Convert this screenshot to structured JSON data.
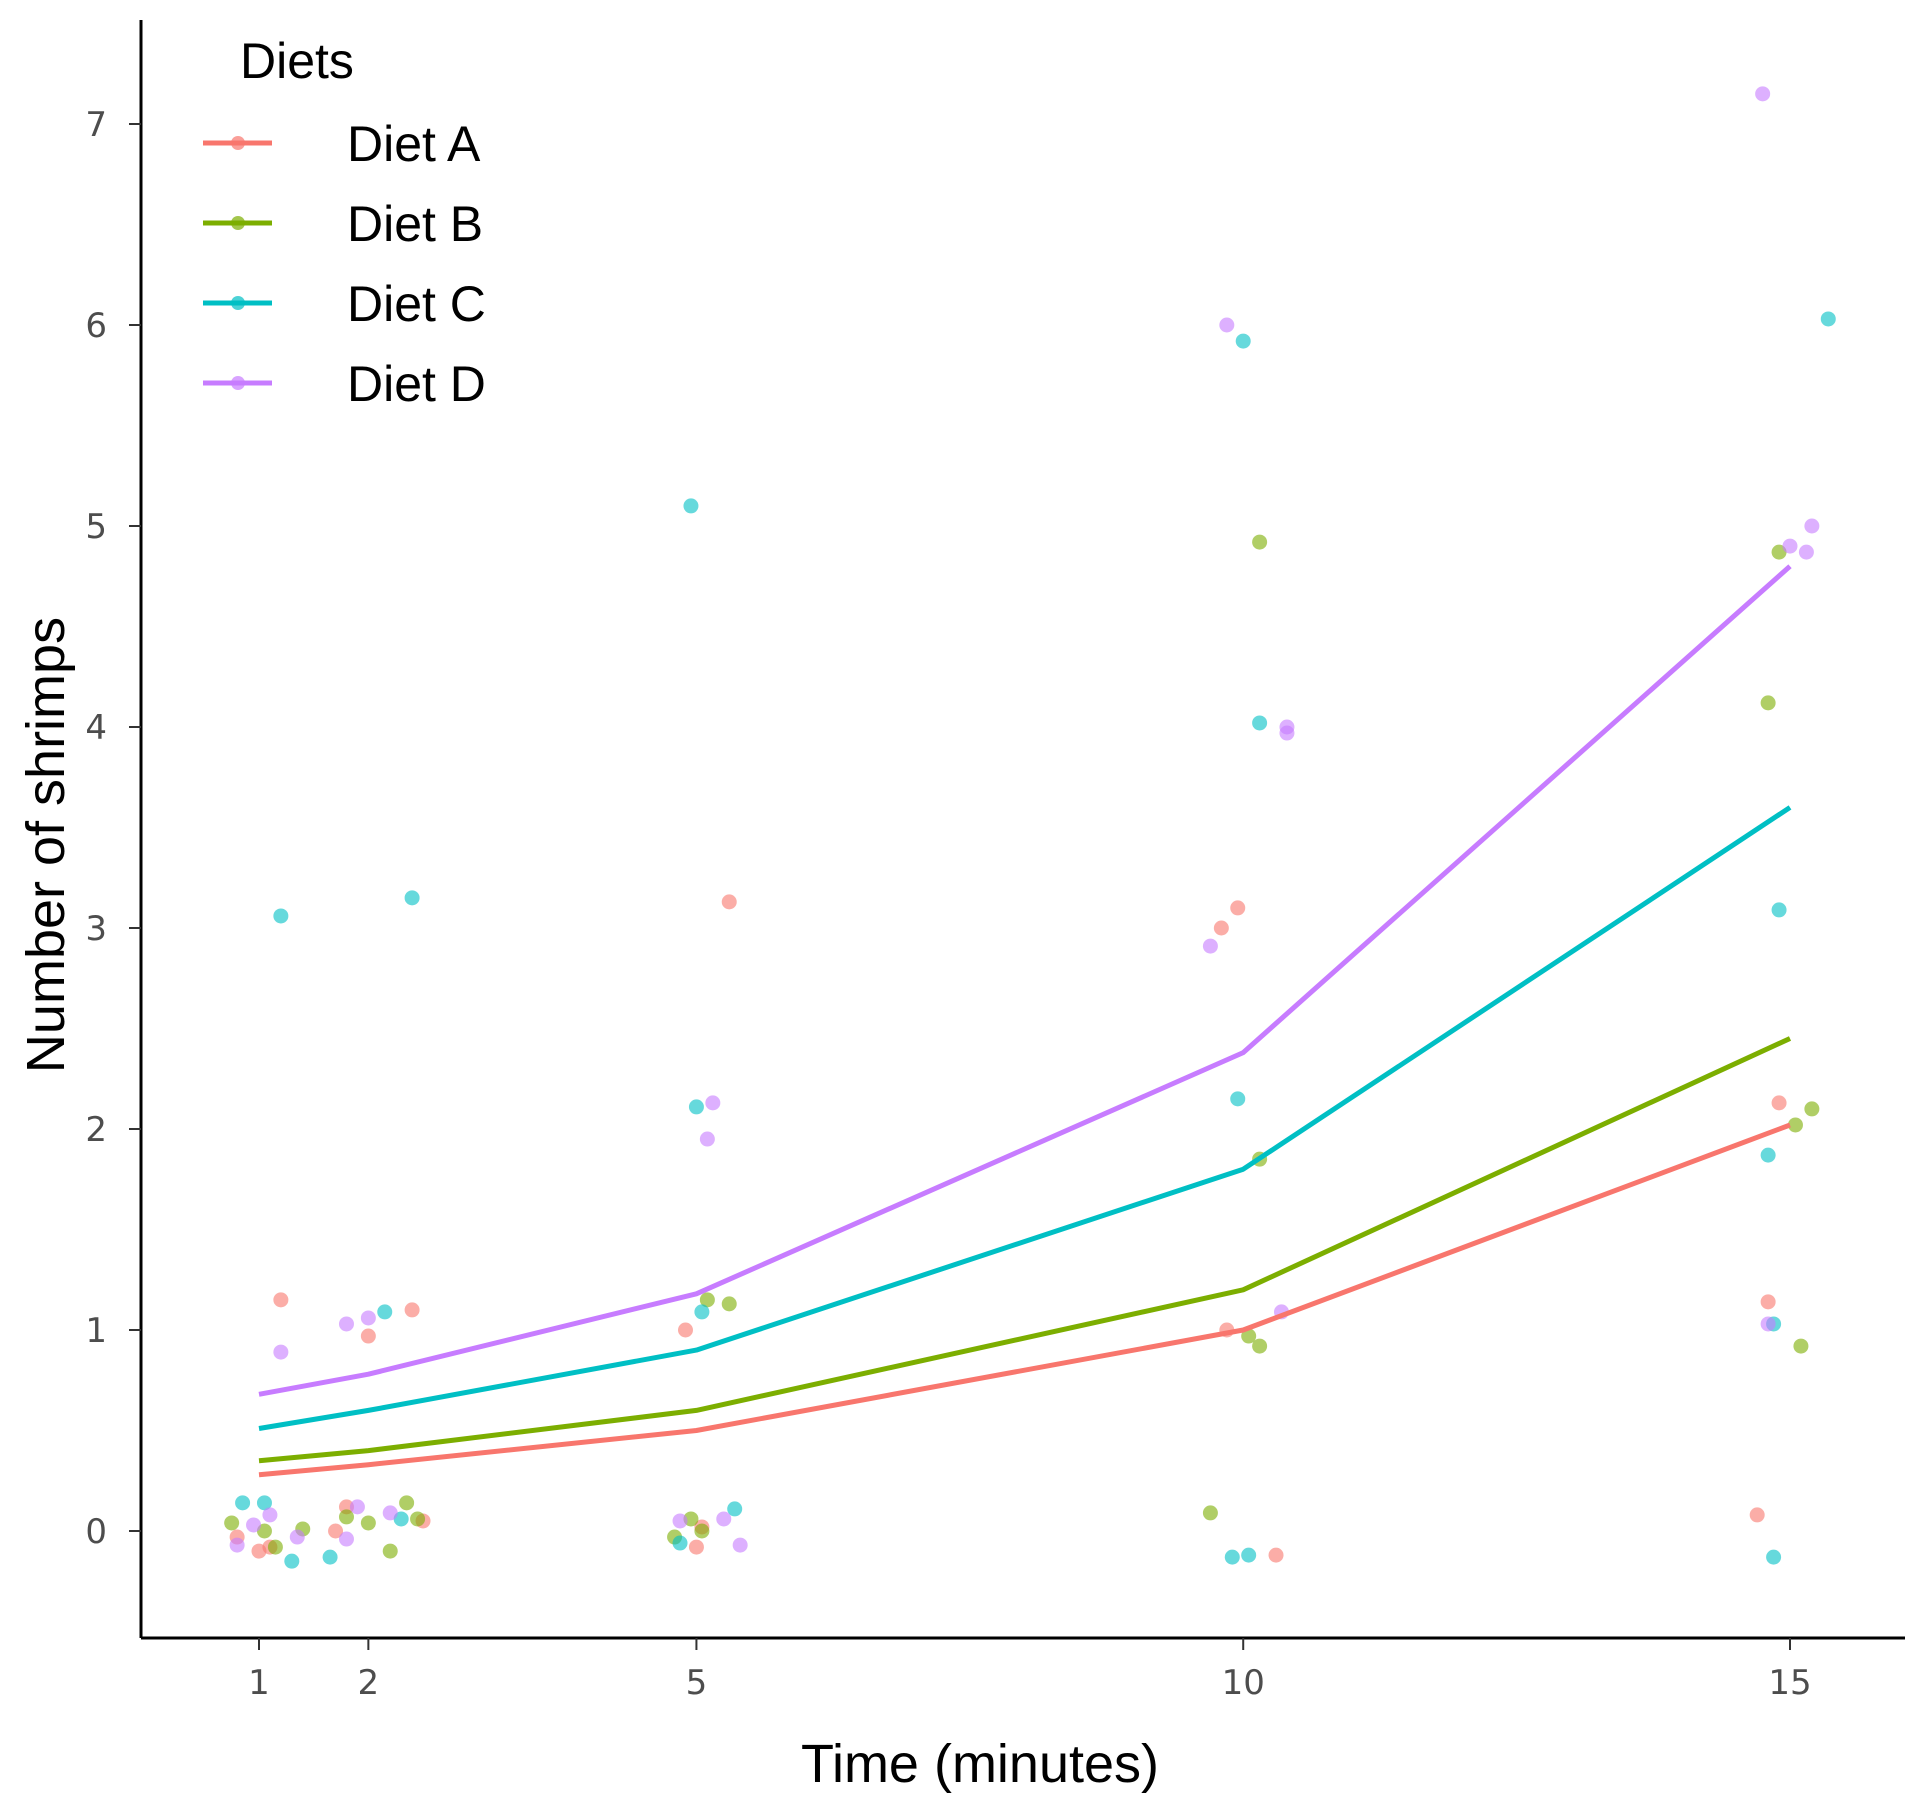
{
  "chart_data": {
    "type": "line",
    "xlabel": "Time (minutes)",
    "ylabel": "Number of shrimps",
    "xlim": [
      -0.2,
      16.2
    ],
    "ylim": [
      -0.5,
      7.5
    ],
    "x_ticks": [
      1,
      2,
      5,
      10,
      15
    ],
    "y_ticks": [
      0,
      1,
      2,
      3,
      4,
      5,
      6,
      7
    ],
    "grid": false,
    "legend": {
      "title": "Diets",
      "position": "top-left"
    },
    "x": [
      1,
      2,
      5,
      10,
      15
    ],
    "series": [
      {
        "name": "Diet A",
        "color": "#F8766D",
        "values": [
          0.28,
          0.33,
          0.5,
          1.0,
          2.02
        ],
        "points": [
          [
            0.8,
            -0.03
          ],
          [
            1.0,
            -0.1
          ],
          [
            1.1,
            -0.08
          ],
          [
            1.2,
            1.15
          ],
          [
            1.7,
            0.0
          ],
          [
            1.8,
            0.12
          ],
          [
            2.0,
            0.97
          ],
          [
            2.4,
            1.1
          ],
          [
            2.5,
            0.05
          ],
          [
            4.9,
            1.0
          ],
          [
            5.0,
            -0.08
          ],
          [
            5.05,
            0.02
          ],
          [
            5.3,
            3.13
          ],
          [
            9.8,
            3.0
          ],
          [
            9.95,
            3.1
          ],
          [
            9.85,
            1.0
          ],
          [
            10.3,
            -0.12
          ],
          [
            14.7,
            0.08
          ],
          [
            14.8,
            1.14
          ],
          [
            14.9,
            2.13
          ]
        ]
      },
      {
        "name": "Diet B",
        "color": "#7CAE00",
        "values": [
          0.35,
          0.4,
          0.6,
          1.2,
          2.45
        ],
        "points": [
          [
            0.75,
            0.04
          ],
          [
            1.05,
            0.0
          ],
          [
            1.15,
            -0.08
          ],
          [
            1.4,
            0.01
          ],
          [
            1.8,
            0.07
          ],
          [
            2.0,
            0.04
          ],
          [
            2.2,
            -0.1
          ],
          [
            2.35,
            0.14
          ],
          [
            2.45,
            0.06
          ],
          [
            4.8,
            -0.03
          ],
          [
            4.95,
            0.06
          ],
          [
            5.05,
            0.0
          ],
          [
            5.1,
            1.15
          ],
          [
            5.3,
            1.13
          ],
          [
            9.7,
            0.09
          ],
          [
            10.05,
            0.97
          ],
          [
            10.15,
            0.92
          ],
          [
            10.15,
            1.85
          ],
          [
            10.15,
            4.92
          ],
          [
            14.8,
            4.12
          ],
          [
            14.9,
            4.87
          ],
          [
            15.05,
            2.02
          ],
          [
            15.1,
            0.92
          ],
          [
            15.2,
            2.1
          ]
        ]
      },
      {
        "name": "Diet C",
        "color": "#00BFC4",
        "values": [
          0.51,
          0.6,
          0.9,
          1.8,
          3.6
        ],
        "points": [
          [
            0.85,
            0.14
          ],
          [
            1.05,
            0.14
          ],
          [
            1.2,
            3.06
          ],
          [
            1.3,
            -0.15
          ],
          [
            1.65,
            -0.13
          ],
          [
            2.15,
            1.09
          ],
          [
            2.3,
            0.06
          ],
          [
            2.4,
            3.15
          ],
          [
            4.85,
            -0.06
          ],
          [
            4.95,
            5.1
          ],
          [
            5.0,
            2.11
          ],
          [
            5.05,
            1.09
          ],
          [
            5.35,
            0.11
          ],
          [
            9.9,
            -0.13
          ],
          [
            9.95,
            2.15
          ],
          [
            10.0,
            5.92
          ],
          [
            10.05,
            -0.12
          ],
          [
            10.15,
            4.02
          ],
          [
            14.8,
            1.87
          ],
          [
            14.85,
            -0.13
          ],
          [
            14.85,
            1.03
          ],
          [
            14.9,
            3.09
          ],
          [
            15.35,
            6.03
          ]
        ]
      },
      {
        "name": "Diet D",
        "color": "#C77CFF",
        "values": [
          0.68,
          0.78,
          1.18,
          2.38,
          4.8
        ],
        "points": [
          [
            0.8,
            -0.07
          ],
          [
            0.95,
            0.03
          ],
          [
            1.1,
            0.08
          ],
          [
            1.2,
            0.89
          ],
          [
            1.35,
            -0.03
          ],
          [
            1.8,
            -0.04
          ],
          [
            1.8,
            1.03
          ],
          [
            1.9,
            0.12
          ],
          [
            2.0,
            1.06
          ],
          [
            2.2,
            0.09
          ],
          [
            4.85,
            0.05
          ],
          [
            5.1,
            1.95
          ],
          [
            5.15,
            2.13
          ],
          [
            5.25,
            0.06
          ],
          [
            5.4,
            -0.07
          ],
          [
            9.7,
            2.91
          ],
          [
            9.85,
            6.0
          ],
          [
            10.4,
            4.0
          ],
          [
            10.4,
            3.97
          ],
          [
            10.35,
            1.09
          ],
          [
            14.75,
            7.15
          ],
          [
            14.8,
            1.03
          ],
          [
            15.0,
            4.9
          ],
          [
            15.15,
            4.87
          ],
          [
            15.2,
            5.0
          ]
        ]
      }
    ]
  }
}
